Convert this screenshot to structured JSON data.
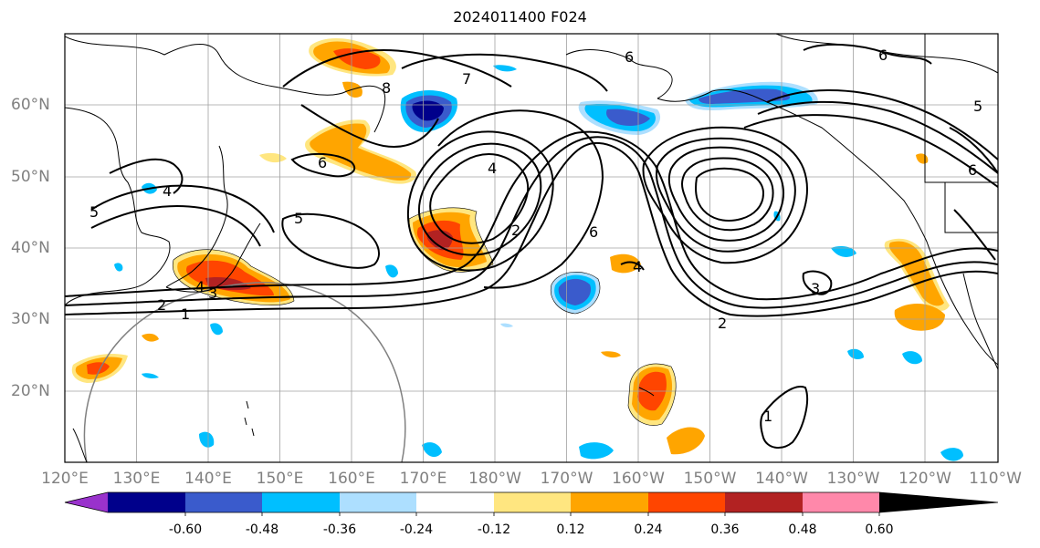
{
  "title": "2024011400 F024",
  "lon_labels": [
    "120°E",
    "130°E",
    "140°E",
    "150°E",
    "160°E",
    "170°E",
    "180°W",
    "170°W",
    "160°W",
    "150°W",
    "140°W",
    "130°W",
    "120°W",
    "110°W"
  ],
  "lat_labels": [
    "60°N",
    "50°N",
    "40°N",
    "30°N",
    "20°N"
  ],
  "colorbar": {
    "ticks": [
      "-0.60",
      "-0.48",
      "-0.36",
      "-0.24",
      "-0.12",
      "0.12",
      "0.24",
      "0.36",
      "0.48",
      "0.60"
    ],
    "colors": [
      "#9932CC",
      "#00008B",
      "#3A5BCC",
      "#00BFFF",
      "#ADDFFF",
      "#FFFFFF",
      "#FFE680",
      "#FFA500",
      "#FF4500",
      "#B22222",
      "#FF88AA"
    ]
  },
  "contour_labels": [
    "1",
    "2",
    "2",
    "3",
    "3",
    "4",
    "4",
    "5",
    "5",
    "6",
    "6",
    "6",
    "6",
    "7",
    "8",
    "4",
    "2",
    "1",
    "5",
    "6",
    "4"
  ]
}
